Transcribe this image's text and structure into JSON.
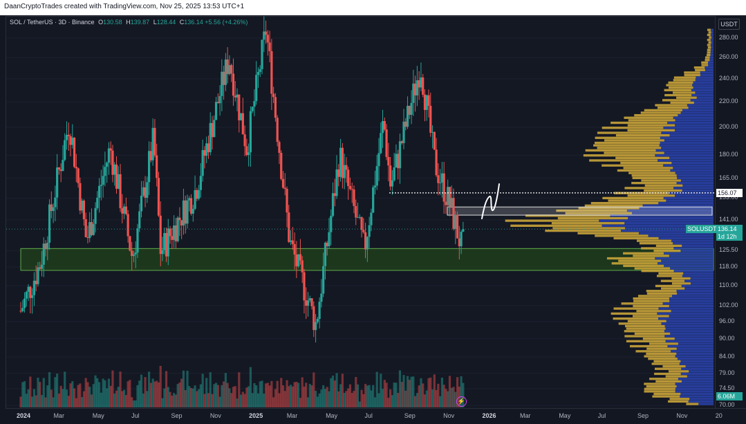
{
  "header": {
    "credit": "DaanCryptoTrades created with TradingView.com, Nov 25, 2025 13:53 UTC+1"
  },
  "legend": {
    "symbol": "SOL / TetherUS · 3D · Binance",
    "open_key": "O",
    "open": "130.58",
    "high_key": "H",
    "high": "139.87",
    "low_key": "L",
    "low": "128.44",
    "close_key": "C",
    "close": "136.14",
    "change": "+5.56 (+4.26%)"
  },
  "price_axis": {
    "currency": "USDT",
    "ticks": [
      "280.00",
      "260.00",
      "240.00",
      "220.00",
      "200.00",
      "180.00",
      "165.00",
      "153.00",
      "141.00",
      "125.50",
      "118.00",
      "110.00",
      "102.00",
      "96.00",
      "90.00",
      "84.00",
      "79.00",
      "74.50",
      "70.00"
    ]
  },
  "time_axis": {
    "ticks": [
      {
        "label": "2024",
        "year": true
      },
      {
        "label": "Mar",
        "year": false
      },
      {
        "label": "May",
        "year": false
      },
      {
        "label": "Jul",
        "year": false
      },
      {
        "label": "Sep",
        "year": false
      },
      {
        "label": "Nov",
        "year": false
      },
      {
        "label": "2025",
        "year": true
      },
      {
        "label": "Mar",
        "year": false
      },
      {
        "label": "May",
        "year": false
      },
      {
        "label": "Jul",
        "year": false
      },
      {
        "label": "Sep",
        "year": false
      },
      {
        "label": "Nov",
        "year": false
      },
      {
        "label": "2026",
        "year": true
      },
      {
        "label": "Mar",
        "year": false
      },
      {
        "label": "May",
        "year": false
      },
      {
        "label": "Jul",
        "year": false
      },
      {
        "label": "Sep",
        "year": false
      },
      {
        "label": "Nov",
        "year": false
      },
      {
        "label": "20",
        "year": false
      }
    ]
  },
  "price_tags": {
    "level": "156.07",
    "symbol": "SOLUSDT",
    "last_price": "136.14",
    "countdown": "1d 12h",
    "volume": "6.06M"
  },
  "zones": {
    "support": {
      "top": 126.5,
      "bottom": 116.5
    },
    "resistance": {
      "top": 148.0,
      "bottom": 143.5
    }
  },
  "colors": {
    "up": "#26a69a",
    "down": "#ef5350",
    "support": "#1e3d1c",
    "vp_up": "#c9a43a",
    "vp_down": "#2a44b0",
    "background": "#141823"
  },
  "icons": {
    "alert": "lightning-icon"
  },
  "chart_data": {
    "type": "candlestick",
    "symbol": "SOL / TetherUS",
    "interval": "3D",
    "exchange": "Binance",
    "last": {
      "open": 130.58,
      "high": 139.87,
      "low": 128.44,
      "close": 136.14
    },
    "ylim": [
      68,
      295
    ],
    "log_scale": true,
    "swing_points": [
      {
        "date": "2024-01-01",
        "price": 100
      },
      {
        "date": "2024-02-01",
        "price": 120
      },
      {
        "date": "2024-03-17",
        "price": 205
      },
      {
        "date": "2024-04-13",
        "price": 130
      },
      {
        "date": "2024-05-20",
        "price": 185
      },
      {
        "date": "2024-06-24",
        "price": 122
      },
      {
        "date": "2024-07-27",
        "price": 192
      },
      {
        "date": "2024-08-07",
        "price": 125
      },
      {
        "date": "2024-10-01",
        "price": 158
      },
      {
        "date": "2024-11-22",
        "price": 260
      },
      {
        "date": "2024-12-20",
        "price": 185
      },
      {
        "date": "2025-01-19",
        "price": 290
      },
      {
        "date": "2025-02-25",
        "price": 130
      },
      {
        "date": "2025-04-07",
        "price": 95
      },
      {
        "date": "2025-05-14",
        "price": 180
      },
      {
        "date": "2025-06-22",
        "price": 126
      },
      {
        "date": "2025-07-22",
        "price": 205
      },
      {
        "date": "2025-08-02",
        "price": 160
      },
      {
        "date": "2025-09-18",
        "price": 253
      },
      {
        "date": "2025-10-10",
        "price": 175
      },
      {
        "date": "2025-11-04",
        "price": 148
      },
      {
        "date": "2025-11-22",
        "price": 126
      },
      {
        "date": "2025-11-25",
        "price": 136.14
      }
    ]
  }
}
